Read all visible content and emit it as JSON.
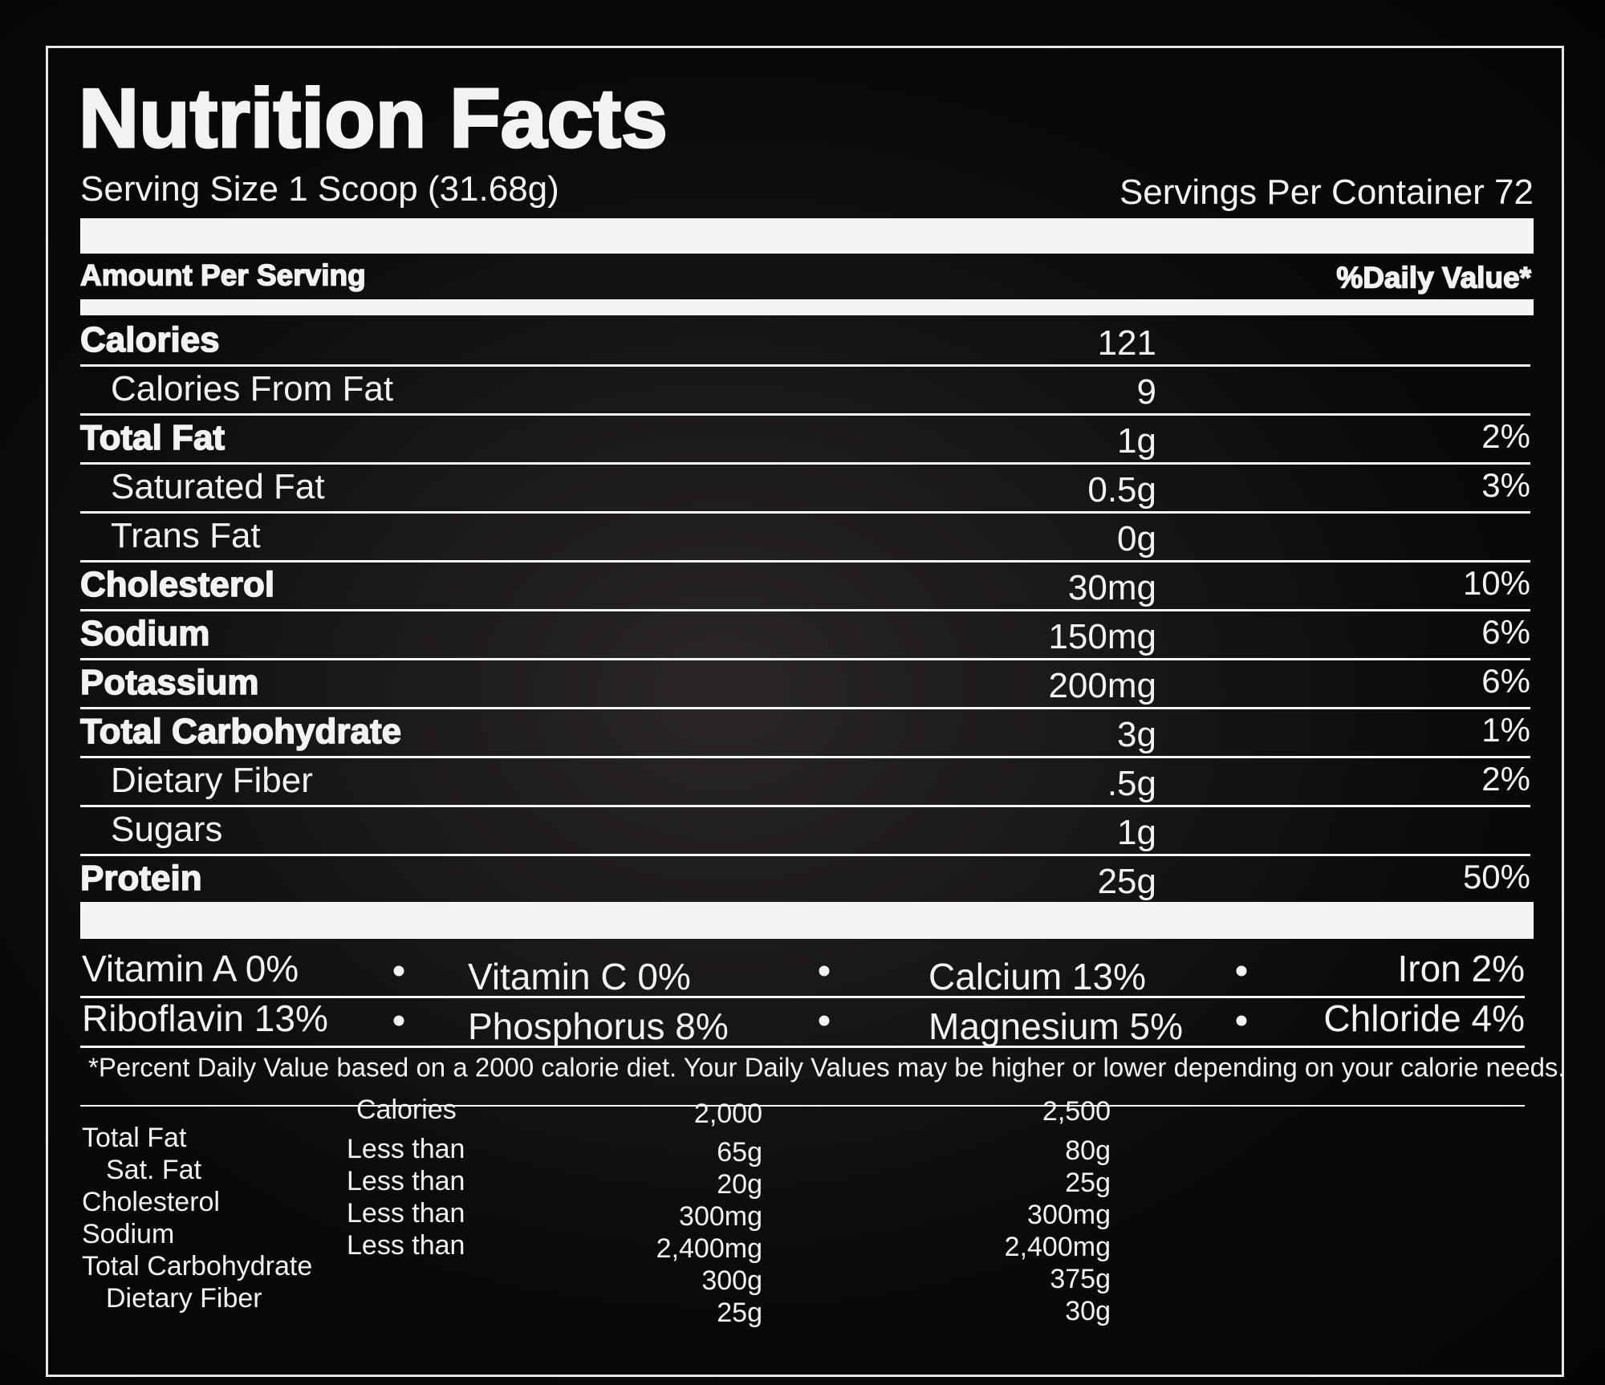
{
  "header": {
    "title": "Nutrition Facts",
    "serving_size": "Serving Size 1 Scoop (31.68g)",
    "servings_per_container": "Servings Per Container 72"
  },
  "columns": {
    "amount_per_serving": "Amount Per Serving",
    "daily_value": "%Daily Value*"
  },
  "rows": [
    {
      "label": "Calories",
      "amount": "121",
      "sub": [
        {
          "label": "Calories From Fat",
          "amount": "9"
        }
      ]
    },
    {
      "label": "Total Fat",
      "amount": "1g",
      "dv": "2%",
      "sub": [
        {
          "label": "Saturated Fat",
          "amount": "0.5g",
          "dv": "3%"
        },
        {
          "label": "Trans Fat",
          "amount": "0g"
        }
      ]
    },
    {
      "label": "Cholesterol",
      "amount": "30mg",
      "dv": "10%"
    },
    {
      "label": "Sodium",
      "amount": "150mg",
      "dv": "6%"
    },
    {
      "label": "Potassium",
      "amount": "200mg",
      "dv": "6%"
    },
    {
      "label": "Total Carbohydrate",
      "amount": "3g",
      "dv": "1%",
      "sub": [
        {
          "label": "Dietary Fiber",
          "amount": ".5g",
          "dv": "2%"
        },
        {
          "label": "Sugars",
          "amount": "1g"
        }
      ]
    },
    {
      "label": "Protein",
      "amount": "25g",
      "dv": "50%"
    }
  ],
  "vitamins": [
    [
      "Vitamin A 0%",
      "Vitamin C 0%",
      "Calcium 13%",
      "Iron 2%"
    ],
    [
      "Riboflavin 13%",
      "Phosphorus 8%",
      "Magnesium 5%",
      "Chloride 4%"
    ]
  ],
  "footnote": "*Percent Daily Value based on a 2000 calorie diet. Your Daily Values may be higher or lower depending on your calorie needs.",
  "reference": {
    "header": [
      "Calories",
      "2,000",
      "2,500"
    ],
    "rows": [
      {
        "label": "Total Fat",
        "limit": "Less than",
        "v2000": "65g",
        "v2500": "80g",
        "sub": [
          {
            "label": "Sat. Fat",
            "limit": "Less than",
            "v2000": "20g",
            "v2500": "25g"
          }
        ]
      },
      {
        "label": "Cholesterol",
        "limit": "Less than",
        "v2000": "300mg",
        "v2500": "300mg"
      },
      {
        "label": "Sodium",
        "limit": "Less than",
        "v2000": "2,400mg",
        "v2500": "2,400mg"
      },
      {
        "label": "Total Carbohydrate",
        "v2000": "300g",
        "v2500": "375g",
        "sub": [
          {
            "label": "Dietary Fiber",
            "v2000": "25g",
            "v2500": "30g"
          }
        ]
      }
    ]
  }
}
